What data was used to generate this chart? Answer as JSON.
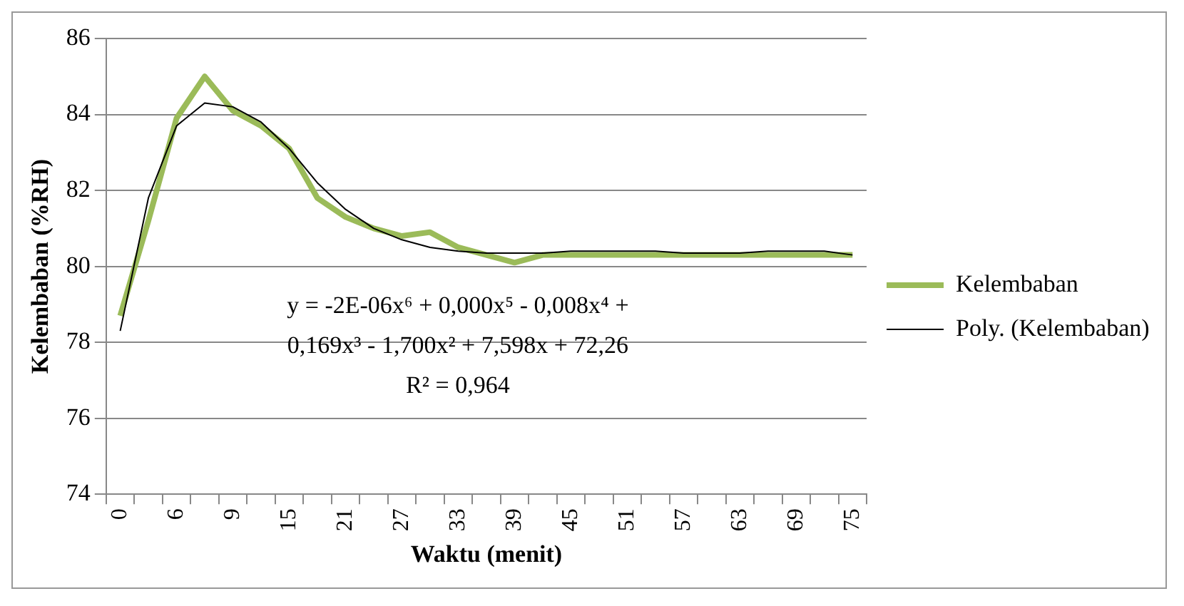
{
  "chart_data": {
    "type": "line",
    "xlabel": "Waktu (menit)",
    "ylabel": "Kelembaban (%RH)",
    "categories": [
      "0",
      null,
      "6",
      null,
      "9",
      null,
      "15",
      null,
      "21",
      null,
      "27",
      null,
      "33",
      null,
      "39",
      null,
      "45",
      null,
      "51",
      null,
      "57",
      null,
      "63",
      null,
      "69",
      null,
      "75"
    ],
    "series": [
      {
        "name": "Kelembaban",
        "color": "#9bbb59",
        "values": [
          78.7,
          81.2,
          83.9,
          85.0,
          84.1,
          83.7,
          83.1,
          81.8,
          81.3,
          81.0,
          80.8,
          80.9,
          80.5,
          80.3,
          80.1,
          80.3,
          80.3,
          80.3,
          80.3,
          80.3,
          80.3,
          80.3,
          80.3,
          80.3,
          80.3,
          80.3,
          80.3
        ]
      },
      {
        "name": "Poly. (Kelembaban)",
        "color": "#000000",
        "values": [
          78.3,
          81.8,
          83.7,
          84.3,
          84.2,
          83.8,
          83.1,
          82.2,
          81.5,
          81.0,
          80.7,
          80.5,
          80.4,
          80.35,
          80.35,
          80.35,
          80.4,
          80.4,
          80.4,
          80.4,
          80.35,
          80.35,
          80.35,
          80.4,
          80.4,
          80.4,
          80.3
        ]
      }
    ],
    "ylim": [
      74,
      86
    ],
    "yticks": [
      74,
      76,
      78,
      80,
      82,
      84,
      86
    ],
    "grid": "y",
    "legend": "right",
    "marker": "none",
    "annotations": [
      "y = -2E-06x⁶ + 0,000x⁵ - 0,008x⁴ +",
      "0,169x³ - 1,700x² + 7,598x + 72,26",
      "R² = 0,964"
    ]
  }
}
